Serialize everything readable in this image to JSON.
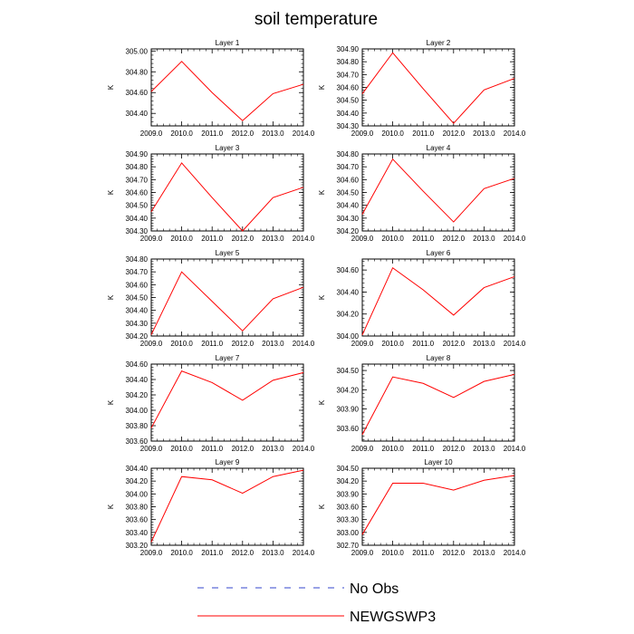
{
  "chart_data": {
    "type": "line",
    "title": "soil temperature",
    "ylabel": "K",
    "x": [
      2009.0,
      2010.0,
      2011.0,
      2012.0,
      2013.0,
      2014.0
    ],
    "x_tick_labels": [
      "2009.0",
      "2010.0",
      "2011.0",
      "2012.0",
      "2013.0",
      "2014.0"
    ],
    "series_color": "#ff0000",
    "obs_color": "#3344cc",
    "legend": [
      {
        "name": "No Obs",
        "style": "dashed",
        "color": "#3344cc"
      },
      {
        "name": "NEWGSWP3",
        "style": "solid",
        "color": "#ff0000"
      }
    ],
    "panels": [
      {
        "title": "Layer 1",
        "ylim": [
          304.28,
          305.02
        ],
        "yticks": [
          "304.40",
          "304.60",
          "304.80",
          "305.00"
        ],
        "ytick_values": [
          304.4,
          304.6,
          304.8,
          305.0
        ],
        "values": [
          304.61,
          304.9,
          304.6,
          304.33,
          304.59,
          304.68
        ]
      },
      {
        "title": "Layer 2",
        "ylim": [
          304.3,
          304.9
        ],
        "yticks": [
          "304.30",
          "304.40",
          "304.50",
          "304.60",
          "304.70",
          "304.80",
          "304.90"
        ],
        "ytick_values": [
          304.3,
          304.4,
          304.5,
          304.6,
          304.7,
          304.8,
          304.9
        ],
        "values": [
          304.55,
          304.87,
          304.59,
          304.32,
          304.58,
          304.67
        ]
      },
      {
        "title": "Layer 3",
        "ylim": [
          304.3,
          304.9
        ],
        "yticks": [
          "304.30",
          "304.40",
          "304.50",
          "304.60",
          "304.70",
          "304.80",
          "304.90"
        ],
        "ytick_values": [
          304.3,
          304.4,
          304.5,
          304.6,
          304.7,
          304.8,
          304.9
        ],
        "values": [
          304.45,
          304.83,
          304.56,
          304.3,
          304.56,
          304.64
        ]
      },
      {
        "title": "Layer 4",
        "ylim": [
          304.2,
          304.8
        ],
        "yticks": [
          "304.20",
          "304.30",
          "304.40",
          "304.50",
          "304.60",
          "304.70",
          "304.80"
        ],
        "ytick_values": [
          304.2,
          304.3,
          304.4,
          304.5,
          304.6,
          304.7,
          304.8
        ],
        "values": [
          304.33,
          304.76,
          304.51,
          304.27,
          304.53,
          304.61
        ]
      },
      {
        "title": "Layer 5",
        "ylim": [
          304.2,
          304.8
        ],
        "yticks": [
          "304.20",
          "304.30",
          "304.40",
          "304.50",
          "304.60",
          "304.70",
          "304.80"
        ],
        "ytick_values": [
          304.2,
          304.3,
          304.4,
          304.5,
          304.6,
          304.7,
          304.8
        ],
        "values": [
          304.21,
          304.7,
          304.47,
          304.24,
          304.49,
          304.58
        ]
      },
      {
        "title": "Layer 6",
        "ylim": [
          304.0,
          304.7
        ],
        "yticks": [
          "304.00",
          "304.20",
          "304.40",
          "304.60"
        ],
        "ytick_values": [
          304.0,
          304.2,
          304.4,
          304.6
        ],
        "values": [
          304.01,
          304.62,
          304.42,
          304.19,
          304.44,
          304.54
        ]
      },
      {
        "title": "Layer 7",
        "ylim": [
          303.6,
          304.6
        ],
        "yticks": [
          "303.60",
          "303.80",
          "304.00",
          "304.20",
          "304.40",
          "304.60"
        ],
        "ytick_values": [
          303.6,
          303.8,
          304.0,
          304.2,
          304.4,
          304.6
        ],
        "values": [
          303.77,
          304.51,
          304.36,
          304.13,
          304.39,
          304.49
        ]
      },
      {
        "title": "Layer 8",
        "ylim": [
          303.4,
          304.6
        ],
        "yticks": [
          "303.60",
          "303.90",
          "304.20",
          "304.50"
        ],
        "ytick_values": [
          303.6,
          303.9,
          304.2,
          304.5
        ],
        "values": [
          303.5,
          304.4,
          304.3,
          304.08,
          304.33,
          304.44
        ]
      },
      {
        "title": "Layer 9",
        "ylim": [
          303.2,
          304.4
        ],
        "yticks": [
          "303.20",
          "303.40",
          "303.60",
          "303.80",
          "304.00",
          "304.20",
          "304.40"
        ],
        "ytick_values": [
          303.2,
          303.4,
          303.6,
          303.8,
          304.0,
          304.2,
          304.4
        ],
        "values": [
          303.25,
          304.27,
          304.22,
          304.01,
          304.27,
          304.37
        ]
      },
      {
        "title": "Layer 10",
        "ylim": [
          302.7,
          304.5
        ],
        "yticks": [
          "302.70",
          "303.00",
          "303.30",
          "303.60",
          "303.90",
          "304.20",
          "304.50"
        ],
        "ytick_values": [
          302.7,
          303.0,
          303.3,
          303.6,
          303.9,
          304.2,
          304.5
        ],
        "values": [
          302.95,
          304.15,
          304.15,
          303.99,
          304.22,
          304.33
        ]
      }
    ]
  }
}
